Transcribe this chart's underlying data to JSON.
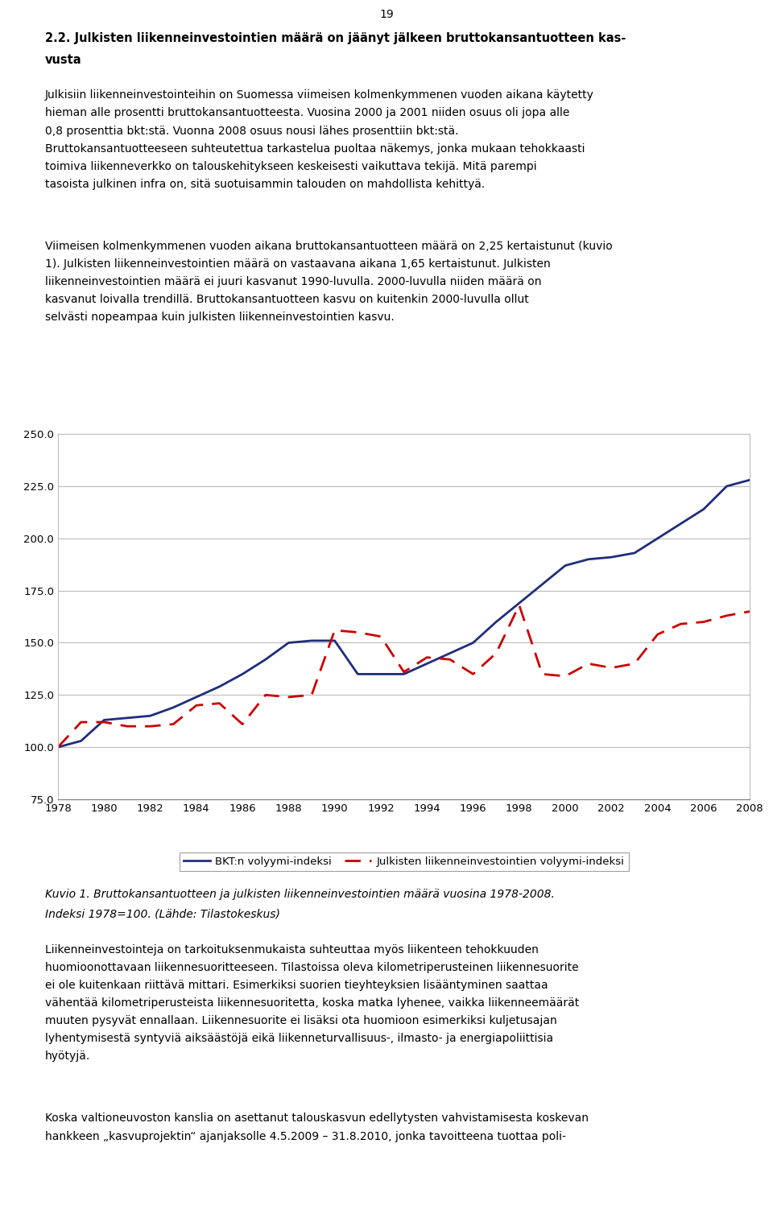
{
  "years": [
    1978,
    1979,
    1980,
    1981,
    1982,
    1983,
    1984,
    1985,
    1986,
    1987,
    1988,
    1989,
    1990,
    1991,
    1992,
    1993,
    1994,
    1995,
    1996,
    1997,
    1998,
    1999,
    2000,
    2001,
    2002,
    2003,
    2004,
    2005,
    2006,
    2007,
    2008
  ],
  "bkt": [
    100,
    103,
    113,
    114,
    115,
    119,
    124,
    129,
    135,
    142,
    150,
    151,
    151,
    135,
    135,
    135,
    140,
    145,
    150,
    160,
    169,
    178,
    187,
    190,
    191,
    193,
    200,
    207,
    214,
    225,
    228
  ],
  "inv": [
    100,
    112,
    112,
    110,
    110,
    111,
    120,
    121,
    111,
    125,
    124,
    125,
    156,
    155,
    153,
    136,
    143,
    142,
    135,
    145,
    168,
    135,
    134,
    140,
    138,
    140,
    154,
    159,
    160,
    163,
    165
  ],
  "ylim": [
    75,
    250
  ],
  "yticks": [
    75.0,
    100.0,
    125.0,
    150.0,
    175.0,
    200.0,
    225.0,
    250.0
  ],
  "bkt_color": "#1f2d7b",
  "inv_color": "#cc0000",
  "bkt_label": "BKT:n volyymi-indeksi",
  "inv_label": "Julkisten liikenneinvestointien volyymi-indeksi",
  "legend_box_color": "#ffffff",
  "background_color": "#ffffff",
  "grid_color": "#bbbbbb",
  "page_number": "19",
  "title_line1": "2.2. Julkisten liikenneinvestointien määrä on jäänyt jälkeen bruttokansantuotteen kas-",
  "title_line2": "vusta",
  "p1": "Julkisiin liikenneinvestointeihin on Suomessa viimeisen kolmenkymmenen vuoden aikana käytetty hieman alle prosentti bruttokansantuotteesta. Vuosina 2000 ja 2001 niiden osuus oli jopa alle 0,8 prosenttia bkt:stä. Vuonna 2008 osuus nousi lähes prosenttiin bkt:stä. Bruttokansantuotteeseen suhteutettua tarkastelua puoltaa näkemys, jonka mukaan tehokkaasti toimiva liikenneverkko on talouskehitykseen keskeisesti vaikuttava tekijä. Mitä parempi tasoista julkinen infra on, sitä suotuisammin talouden on mahdollista kehittyä.",
  "p2": "Viimeisen kolmenkymmenen vuoden aikana bruttokansantuotteen määrä on 2,25 kertaistunut (kuvio 1). Julkisten liikenneinvestointien määrä on vastaavana aikana 1,65 kertaistunut. Julkisten liikenneinvestointien määrä ei juuri kasvanut 1990-luvulla. 2000-luvulla niiden määrä on kasvanut loivalla trendillä. Bruttokansantuotteen kasvu on kuitenkin 2000-luvulla ollut selvästi nopeampaa kuin julkisten liikenneinvestointien kasvu.",
  "caption_line1": "Kuvio 1. Bruttokansantuotteen ja julkisten liikenneinvestointien määrä vuosina 1978-2008.",
  "caption_line2": "Indeksi 1978=100. (Lähde: Tilastokeskus)",
  "p3": "Liikenneinvestointeja on tarkoituksenmukaista suhteuttaa myös liikenteen tehokkuuden huomioonottavaan liikennesuoritteeseen. Tilastoissa oleva kilometriperusteinen liikennesuorite ei ole kuitenkaan riittävä mittari. Esimerkiksi suorien tieyhteyksien lisääntyminen saattaa vähentää kilometriperusteista liikennesuoritetta, koska matka lyhenee, vaikka liikenneemäärät muuten pysyvät ennallaan. Liikennesuorite ei lisäksi ota huomioon esimerkiksi kuljetusajan lyhentymisestä syntyviä aiksäästöjä eikä liikenneturvallisuus-, ilmasto- ja energiapoliittisia hyötyjä.",
  "p4": "Koska valtioneuvoston kanslia on asettanut talouskasvun edellytysten vahvistamisesta koskevan hankkeen „kasvuprojektin“ ajanjaksolle 4.5.2009 – 31.8.2010, jonka tavoitteena tuottaa poli-",
  "body_fontsize": 10.0,
  "title_fontsize": 10.5,
  "tick_label_fontsize": 9.5,
  "legend_fontsize": 9.5
}
